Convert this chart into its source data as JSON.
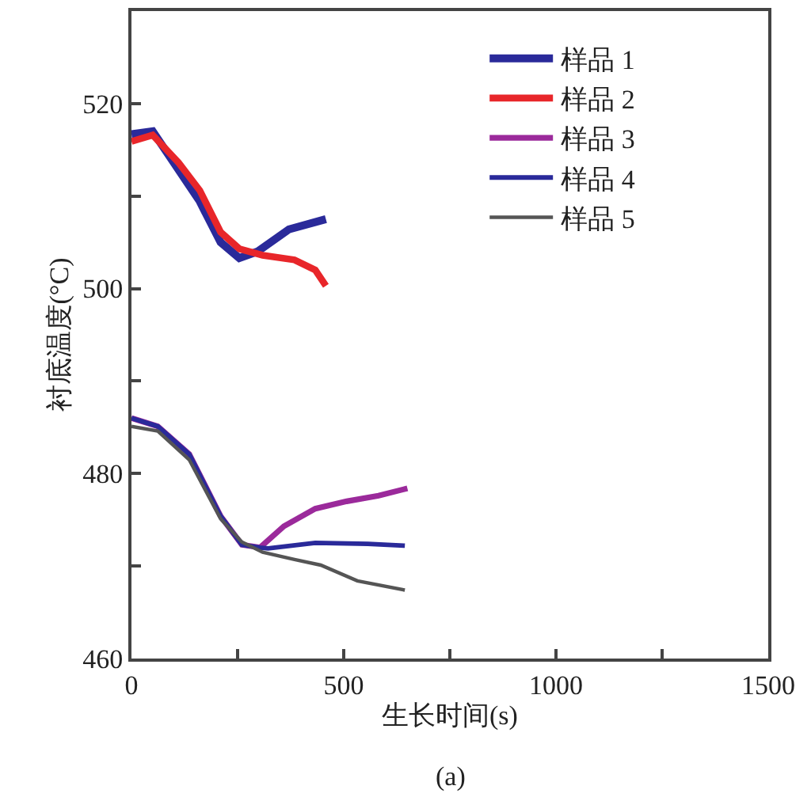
{
  "chart_data": {
    "type": "line",
    "xlabel": "生长时间(s)",
    "ylabel": "衬底温度(°C)",
    "annotations": [
      "(a)"
    ],
    "xlim": [
      0,
      1500
    ],
    "ylim": [
      460,
      530
    ],
    "xticks": [
      0,
      {
        "value": 250,
        "label": null
      },
      500,
      {
        "value": 750,
        "label": null
      },
      1000,
      {
        "value": 1250,
        "label": null
      },
      1500
    ],
    "yticks": [
      460,
      {
        "value": 470,
        "label": null
      },
      480,
      {
        "value": 490,
        "label": null
      },
      500,
      {
        "value": 510,
        "label": null
      },
      520
    ],
    "legend": "top right",
    "marker": "none",
    "line_style": "solid",
    "series": [
      {
        "name": "样品 1",
        "color": "#2a2a9a",
        "x": [
          0,
          50,
          160,
          210,
          254,
          297,
          371,
          458
        ],
        "values": [
          516.7,
          517,
          509.5,
          505,
          503.3,
          504,
          506.4,
          507.5
        ]
      },
      {
        "name": "样品 2",
        "color": "#e8262a",
        "x": [
          0,
          50,
          111,
          161,
          210,
          254,
          309,
          384,
          433,
          458
        ],
        "values": [
          515.9,
          516.6,
          513.6,
          510.6,
          506.1,
          504.3,
          503.6,
          503.1,
          502,
          500.3
        ]
      },
      {
        "name": "样品 3",
        "color": "#9b2a9b",
        "x": [
          0,
          62,
          136,
          210,
          260,
          303,
          359,
          433,
          507,
          582,
          650
        ],
        "values": [
          486,
          485.1,
          482.1,
          475.4,
          472.3,
          472,
          474.3,
          476.2,
          477,
          477.6,
          478.4
        ]
      },
      {
        "name": "样品 4",
        "color": "#2a2a9a",
        "x": [
          0,
          62,
          136,
          210,
          260,
          303,
          322,
          433,
          557,
          644
        ],
        "values": [
          486,
          485.1,
          482.1,
          475.4,
          472.3,
          472,
          471.9,
          472.5,
          472.4,
          472.2
        ]
      },
      {
        "name": "样品 5",
        "color": "#555555",
        "x": [
          0,
          62,
          136,
          210,
          260,
          309,
          384,
          446,
          532,
          644
        ],
        "values": [
          485.1,
          484.6,
          481.5,
          475.1,
          472.6,
          471.5,
          470.7,
          470.1,
          468.4,
          467.4
        ]
      }
    ]
  }
}
